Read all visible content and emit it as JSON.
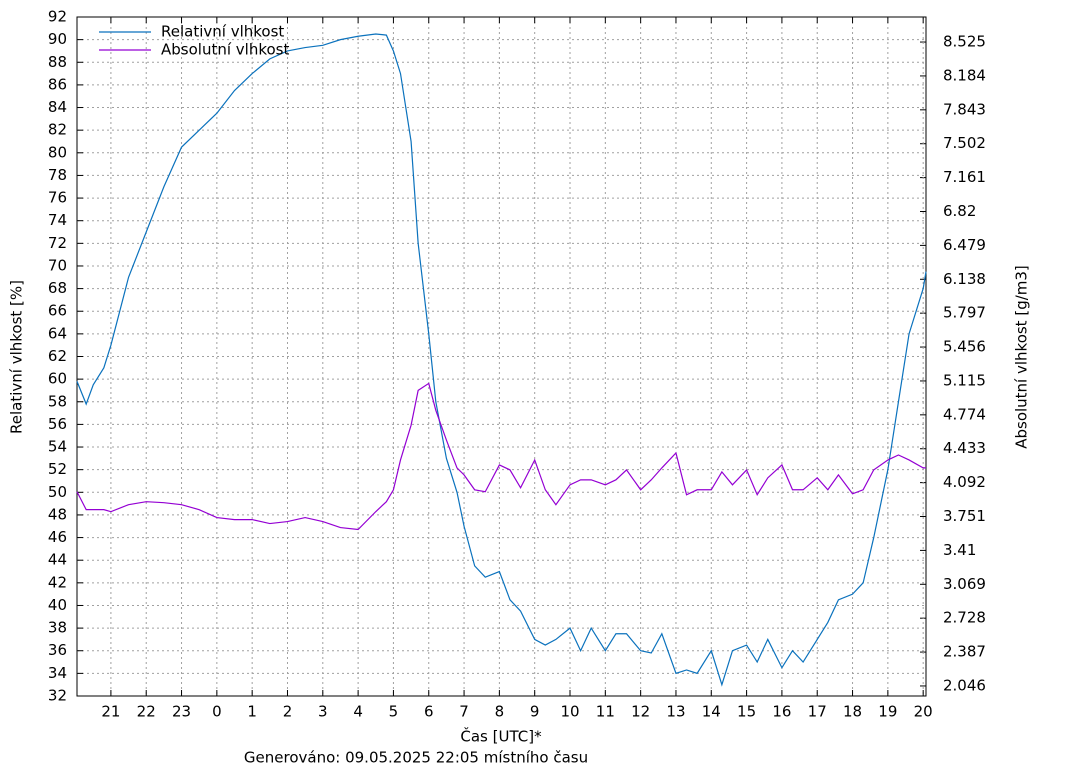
{
  "chart_data": {
    "type": "line",
    "ylabel": "Relativní vlhkost [%]",
    "y2label": "Absolutní vlhkost [g/m3]",
    "xlabel": "Čas [UTC]*",
    "footer": "Generováno: 09.05.2025 22:05 místního času",
    "grid": true,
    "legend": "top-left",
    "xlim": [
      20.04,
      44.08
    ],
    "xticks": [
      21,
      22,
      23,
      {
        "value": 24,
        "label": "0"
      },
      {
        "value": 25,
        "label": "1"
      },
      {
        "value": 26,
        "label": "2"
      },
      {
        "value": 27,
        "label": "3"
      },
      {
        "value": 28,
        "label": "4"
      },
      {
        "value": 29,
        "label": "5"
      },
      {
        "value": 30,
        "label": "6"
      },
      {
        "value": 31,
        "label": "7"
      },
      {
        "value": 32,
        "label": "8"
      },
      {
        "value": 33,
        "label": "9"
      },
      {
        "value": 34,
        "label": "10"
      },
      {
        "value": 35,
        "label": "11"
      },
      {
        "value": 36,
        "label": "12"
      },
      {
        "value": 37,
        "label": "13"
      },
      {
        "value": 38,
        "label": "14"
      },
      {
        "value": 39,
        "label": "15"
      },
      {
        "value": 40,
        "label": "16"
      },
      {
        "value": 41,
        "label": "17"
      },
      {
        "value": 42,
        "label": "18"
      },
      {
        "value": 43,
        "label": "19"
      },
      {
        "value": 44,
        "label": "20"
      }
    ],
    "ylim": [
      32,
      92
    ],
    "yticks": [
      32,
      34,
      36,
      38,
      40,
      42,
      44,
      46,
      48,
      50,
      52,
      54,
      56,
      58,
      60,
      62,
      64,
      66,
      68,
      70,
      72,
      74,
      76,
      78,
      80,
      82,
      84,
      86,
      88,
      90,
      92
    ],
    "y2lim": [
      1.945,
      8.777
    ],
    "y2ticks": [
      2.046,
      2.387,
      2.728,
      3.069,
      3.41,
      3.751,
      4.092,
      4.433,
      4.774,
      5.115,
      5.456,
      5.797,
      6.138,
      6.479,
      6.82,
      7.161,
      7.502,
      7.843,
      8.184,
      8.525
    ],
    "x": [
      20.04,
      20.3,
      20.5,
      20.8,
      21.0,
      21.5,
      22.0,
      22.5,
      23.0,
      23.5,
      24,
      24.5,
      25,
      25.5,
      26,
      26.5,
      27,
      27.5,
      28,
      28.5,
      28.8,
      29.0,
      29.2,
      29.5,
      29.7,
      30.0,
      30.2,
      30.5,
      30.8,
      31.0,
      31.3,
      31.6,
      32.0,
      32.3,
      32.6,
      33.0,
      33.3,
      33.6,
      34.0,
      34.3,
      34.6,
      35.0,
      35.3,
      35.6,
      36.0,
      36.3,
      36.6,
      37.0,
      37.3,
      37.6,
      38.0,
      38.3,
      38.6,
      39.0,
      39.3,
      39.6,
      40.0,
      40.3,
      40.6,
      41.0,
      41.3,
      41.6,
      42.0,
      42.3,
      42.6,
      43.0,
      43.3,
      43.6,
      44.0,
      44.08
    ],
    "series": [
      {
        "name": "Relativní vlhkost",
        "color": "#0b72bd",
        "values": [
          59.8,
          57.8,
          59.5,
          61,
          63,
          69,
          73,
          77,
          80.5,
          82,
          83.5,
          85.5,
          87,
          88.3,
          89,
          89.3,
          89.5,
          90,
          90.3,
          90.5,
          90.4,
          89,
          87,
          81,
          72,
          64,
          58,
          53,
          50,
          47,
          43.5,
          42.5,
          43,
          40.5,
          39.5,
          37,
          36.5,
          37,
          38,
          36,
          38,
          36,
          37.5,
          37.5,
          36,
          35.8,
          37.5,
          34,
          34.3,
          34,
          36,
          33,
          36,
          36.5,
          35,
          37,
          34.5,
          36,
          35,
          37,
          38.5,
          40.5,
          41,
          42,
          46,
          52,
          58,
          64,
          68,
          69.5
        ]
      },
      {
        "name": "Absolutní vlhkost",
        "color": "#9400d3",
        "axis": "y2",
        "values": [
          4.0,
          3.82,
          3.82,
          3.82,
          3.8,
          3.87,
          3.9,
          3.89,
          3.87,
          3.82,
          3.74,
          3.72,
          3.72,
          3.68,
          3.7,
          3.74,
          3.7,
          3.64,
          3.62,
          3.8,
          3.9,
          4.02,
          4.32,
          4.67,
          5.02,
          5.09,
          4.82,
          4.52,
          4.24,
          4.17,
          4.02,
          4.0,
          4.27,
          4.22,
          4.04,
          4.32,
          4.02,
          3.87,
          4.07,
          4.12,
          4.12,
          4.07,
          4.12,
          4.22,
          4.02,
          4.12,
          4.24,
          4.39,
          3.97,
          4.02,
          4.02,
          4.2,
          4.07,
          4.22,
          3.97,
          4.14,
          4.27,
          4.02,
          4.02,
          4.14,
          4.02,
          4.17,
          3.98,
          4.02,
          4.22,
          4.32,
          4.37,
          4.32,
          4.24,
          4.24
        ]
      }
    ]
  }
}
